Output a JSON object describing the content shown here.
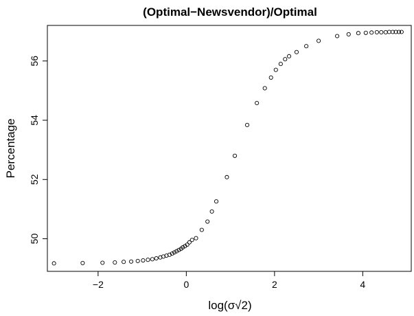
{
  "chart_data": {
    "type": "scatter",
    "title": "(Optimal−Newsvendor)/Optimal",
    "xlabel": "log(σ√2)",
    "ylabel": "Percentage",
    "xlim": [
      -3.15,
      5.1
    ],
    "ylim": [
      48.9,
      57.2
    ],
    "xticks": [
      -2,
      0,
      2,
      4
    ],
    "xtick_labels": [
      "−2",
      "0",
      "2",
      "4"
    ],
    "yticks": [
      50,
      52,
      54,
      56
    ],
    "ytick_labels": [
      "50",
      "52",
      "54",
      "56"
    ],
    "grid": false,
    "legend": "none",
    "marker": "open-circle",
    "x": [
      -3.0,
      -2.35,
      -1.9,
      -1.62,
      -1.42,
      -1.25,
      -1.1,
      -0.98,
      -0.87,
      -0.77,
      -0.68,
      -0.59,
      -0.52,
      -0.45,
      -0.38,
      -0.32,
      -0.27,
      -0.22,
      -0.17,
      -0.12,
      -0.08,
      -0.03,
      0.02,
      0.07,
      0.13,
      0.22,
      0.35,
      0.48,
      0.58,
      0.68,
      0.92,
      1.1,
      1.38,
      1.6,
      1.78,
      1.92,
      2.03,
      2.14,
      2.24,
      2.33,
      2.5,
      2.72,
      3.0,
      3.42,
      3.68,
      3.9,
      4.07,
      4.2,
      4.32,
      4.42,
      4.52,
      4.6,
      4.68,
      4.75,
      4.82,
      4.88
    ],
    "y": [
      49.17,
      49.18,
      49.19,
      49.2,
      49.22,
      49.23,
      49.25,
      49.27,
      49.29,
      49.31,
      49.34,
      49.37,
      49.4,
      49.43,
      49.46,
      49.5,
      49.54,
      49.58,
      49.62,
      49.66,
      49.71,
      49.75,
      49.8,
      49.88,
      49.96,
      50.02,
      50.3,
      50.58,
      50.92,
      51.26,
      52.08,
      52.8,
      53.84,
      54.58,
      55.08,
      55.44,
      55.7,
      55.9,
      56.06,
      56.16,
      56.3,
      56.5,
      56.68,
      56.84,
      56.9,
      56.94,
      56.95,
      56.96,
      56.97,
      56.97,
      56.97,
      56.98,
      56.98,
      56.98,
      56.98,
      56.98
    ]
  }
}
